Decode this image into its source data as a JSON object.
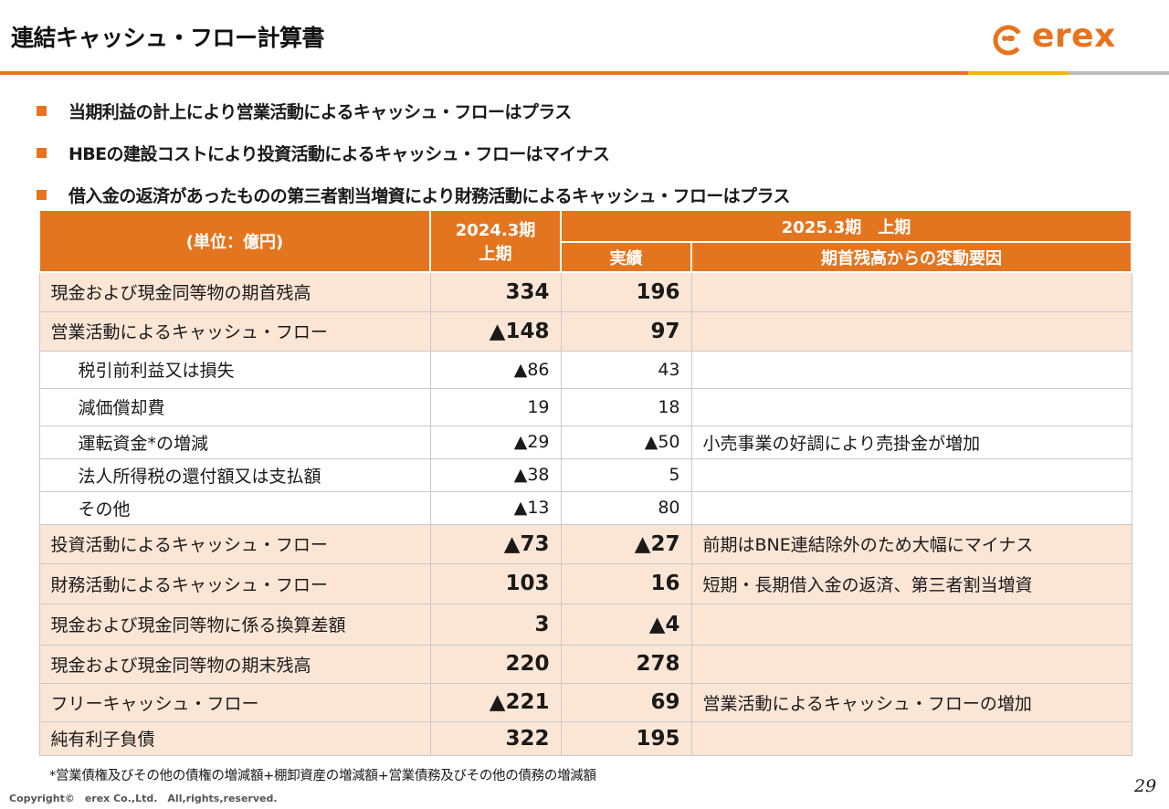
{
  "header": {
    "title": "連結キャッシュ・フロー計算書",
    "logo_text": "erex",
    "brand_color": "#e8731c"
  },
  "bullets": [
    "当期利益の計上により営業活動によるキャッシュ・フローはプラス",
    "HBEの建設コストにより投資活動によるキャッシュ・フローはマイナス",
    "借入金の返済があったものの第三者割当増資により財務活動によるキャッシュ・フローはプラス"
  ],
  "table": {
    "unit_label": "(単位：億円)",
    "col_prev_line1": "2024.3期",
    "col_prev_line2": "上期",
    "col_curr_group": "2025.3期　上期",
    "col_curr_actual": "実績",
    "col_curr_reason": "期首残高からの変動要因",
    "rows": [
      {
        "label": "現金および現金同等物の期首残高",
        "prev": "334",
        "curr": "196",
        "note": ""
      },
      {
        "label": "営業活動によるキャッシュ・フロー",
        "prev": "▲148",
        "curr": "97",
        "note": ""
      },
      {
        "label": "税引前利益又は損失",
        "prev": "▲86",
        "curr": "43",
        "note": ""
      },
      {
        "label": "減価償却費",
        "prev": "19",
        "curr": "18",
        "note": ""
      },
      {
        "label": "運転資金*の増減",
        "prev": "▲29",
        "curr": "▲50",
        "note": "小売事業の好調により売掛金が増加"
      },
      {
        "label": "法人所得税の還付額又は支払額",
        "prev": "▲38",
        "curr": "5",
        "note": ""
      },
      {
        "label": "その他",
        "prev": "▲13",
        "curr": "80",
        "note": ""
      },
      {
        "label": "投資活動によるキャッシュ・フロー",
        "prev": "▲73",
        "curr": "▲27",
        "note": "前期はBNE連結除外のため大幅にマイナス"
      },
      {
        "label": "財務活動によるキャッシュ・フロー",
        "prev": "103",
        "curr": "16",
        "note": "短期・長期借入金の返済、第三者割当増資"
      },
      {
        "label": "現金および現金同等物に係る換算差額",
        "prev": "3",
        "curr": "▲4",
        "note": ""
      },
      {
        "label": "現金および現金同等物の期末残高",
        "prev": "220",
        "curr": "278",
        "note": ""
      },
      {
        "label": "フリーキャッシュ・フロー",
        "prev": "▲221",
        "curr": "69",
        "note": "営業活動によるキャッシュ・フローの増加"
      },
      {
        "label": "純有利子負債",
        "prev": "322",
        "curr": "195",
        "note": ""
      }
    ]
  },
  "footnote": "*営業債権及びその他の債権の増減額+棚卸資産の増減額+営業債務及びその他の債務の増減額",
  "copyright": "Copyright©　erex Co.,Ltd.　All,rights,reserved.",
  "page_number": "29"
}
